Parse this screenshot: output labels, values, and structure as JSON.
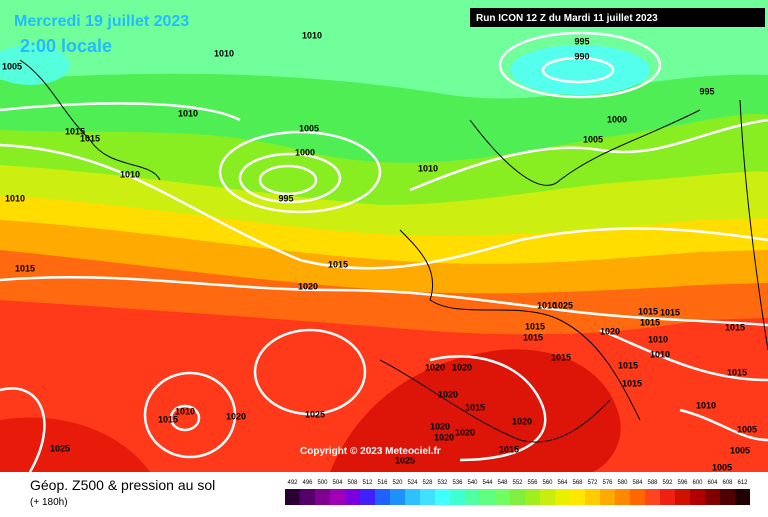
{
  "header": {
    "date": "Mercredi 19 juillet 2023",
    "time": "2:00 locale",
    "run": "Run ICON 12 Z du Mardi 11 juillet 2023"
  },
  "copyright": "Copyright © 2023 Meteociel.fr",
  "footer": {
    "title": "Géop. Z500 & pression au sol",
    "lead": "(+ 180h)"
  },
  "colorbar": {
    "values": [
      492,
      496,
      500,
      504,
      508,
      512,
      516,
      520,
      524,
      528,
      532,
      536,
      540,
      544,
      548,
      552,
      556,
      560,
      564,
      568,
      572,
      576,
      580,
      584,
      588,
      592,
      596,
      600,
      604,
      608,
      612
    ],
    "colors": [
      "#2a0033",
      "#55006a",
      "#80008f",
      "#a000b8",
      "#7a00e0",
      "#4020ff",
      "#2060ff",
      "#2090ff",
      "#30c0ff",
      "#40e0ff",
      "#40ffff",
      "#40ffd0",
      "#50ffa0",
      "#60ff80",
      "#70ff60",
      "#80f040",
      "#a0ee20",
      "#c8ee10",
      "#e8f000",
      "#ffe800",
      "#ffcc00",
      "#ffaa00",
      "#ff8800",
      "#ff6600",
      "#ff4420",
      "#ee2010",
      "#d01000",
      "#b00000",
      "#800000",
      "#500000",
      "#200000"
    ]
  },
  "isobar_labels": [
    1010,
    1010,
    1005,
    995,
    990,
    995,
    1010,
    1005,
    1015,
    1015,
    1000,
    1000,
    1005,
    1010,
    1010,
    995,
    1010,
    1015,
    1015,
    1020,
    1025,
    1010,
    1015,
    1020,
    1015,
    1015,
    1015,
    1015,
    1015,
    1010,
    1010,
    1015,
    1015,
    1015,
    1020,
    1020,
    1015,
    1020,
    1010,
    1015,
    1020,
    1025,
    1015,
    1010,
    1020,
    1020,
    1020,
    1020,
    1005,
    1025,
    1015,
    1005,
    1005,
    1025
  ]
}
